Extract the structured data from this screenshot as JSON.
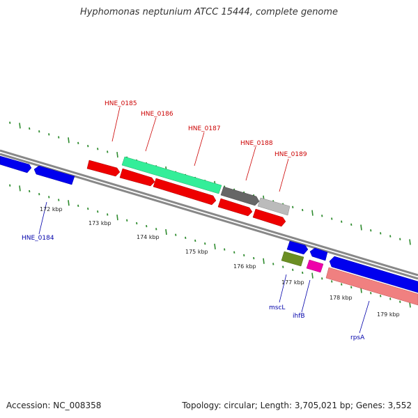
{
  "title": "Hyphomonas neptunium ATCC 15444, complete genome",
  "accession": "Accession: NC_008358",
  "summary": "Topology: circular; Length: 3,705,021 bp; Genes: 3,552",
  "colors": {
    "backbone": "#888888",
    "tick_outer": "#2e8b2e",
    "tick_inner": "#2e8b2e",
    "label_red": "#cc0000",
    "label_blue": "#0000aa"
  },
  "scale_labels": [
    "172 kbp",
    "173 kbp",
    "174 kbp",
    "175 kbp",
    "176 kbp",
    "177 kbp",
    "178 kbp",
    "179 kbp"
  ],
  "gene_labels_red": [
    "HNE_0185",
    "HNE_0186",
    "HNE_0187",
    "HNE_0188",
    "HNE_0189"
  ],
  "gene_labels_blue": [
    "HNE_0184",
    "mscL",
    "ihfB",
    "rpsA"
  ]
}
